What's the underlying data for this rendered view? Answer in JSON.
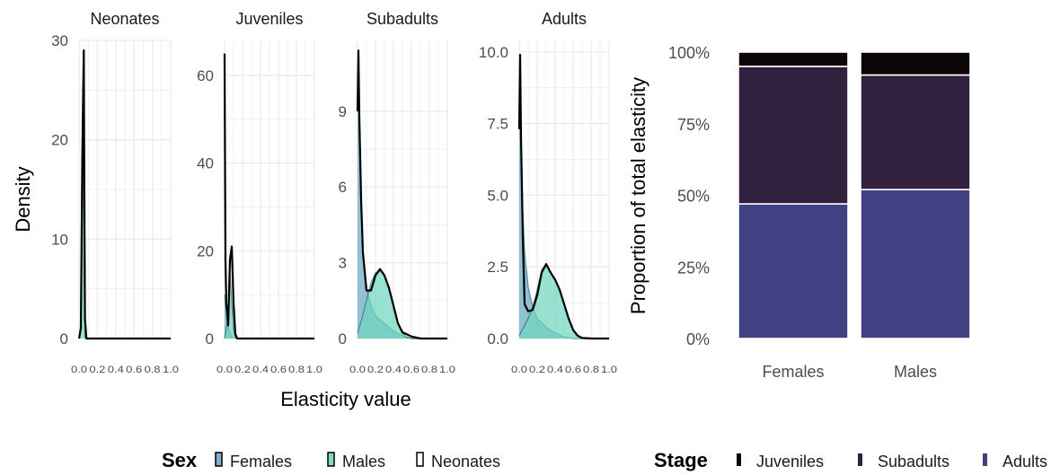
{
  "chart_data": [
    {
      "type": "area",
      "xlabel": "Elasticity value",
      "ylabel": "Density",
      "x_ticks": [
        "0.0",
        "0.2",
        "0.4",
        "0.6",
        "0.8",
        "1.0"
      ],
      "panels": [
        {
          "title": "Neonates",
          "xlim": [
            0,
            1
          ],
          "ylim": [
            0,
            30
          ],
          "y_ticks": [
            "0",
            "10",
            "20",
            "30"
          ],
          "series": [
            {
              "name": "Males",
              "x": [
                0.0,
                0.02,
                0.035,
                0.045,
                0.05,
                0.055,
                0.065
              ],
              "y": [
                0,
                1.5,
                10,
                18,
                28,
                10,
                0
              ]
            },
            {
              "name": "Neonates",
              "x": [
                0.0,
                0.02,
                0.035,
                0.045,
                0.052,
                0.058,
                0.065,
                0.08,
                1.0
              ],
              "y": [
                0,
                1,
                18,
                25,
                29,
                15,
                2,
                0,
                0
              ]
            }
          ]
        },
        {
          "title": "Juveniles",
          "xlim": [
            0,
            1
          ],
          "ylim": [
            0,
            68
          ],
          "y_ticks": [
            "0",
            "20",
            "40",
            "60"
          ],
          "series": [
            {
              "name": "Females",
              "x": [
                0.0,
                0.01,
                0.03,
                0.05,
                0.07,
                0.09
              ],
              "y": [
                10,
                8,
                4,
                2,
                1,
                0
              ]
            },
            {
              "name": "Males",
              "x": [
                0.0,
                0.04,
                0.06,
                0.08,
                0.1,
                0.12
              ],
              "y": [
                0,
                5,
                15,
                8,
                2,
                0
              ]
            },
            {
              "name": "Neonates",
              "x": [
                0.0,
                0.005,
                0.01,
                0.02,
                0.04,
                0.06,
                0.08,
                0.1,
                0.12,
                0.14,
                1.0
              ],
              "y": [
                65,
                40,
                18,
                8,
                3,
                18,
                21,
                8,
                1,
                0,
                0
              ]
            }
          ]
        },
        {
          "title": "Subadults",
          "xlim": [
            0,
            1
          ],
          "ylim": [
            0,
            11.8
          ],
          "y_ticks": [
            "0",
            "3",
            "6",
            "9"
          ],
          "series": [
            {
              "name": "Females",
              "x": [
                0.0,
                0.01,
                0.02,
                0.04,
                0.06,
                0.1,
                0.15,
                0.2,
                0.3,
                0.4,
                0.5,
                0.6,
                0.7,
                1.0
              ],
              "y": [
                9,
                11,
                8.5,
                5,
                3.5,
                2,
                1.3,
                0.9,
                0.6,
                0.3,
                0.1,
                0,
                0,
                0
              ]
            },
            {
              "name": "Males",
              "x": [
                0.0,
                0.05,
                0.1,
                0.15,
                0.2,
                0.25,
                0.3,
                0.35,
                0.4,
                0.45,
                0.5,
                0.55,
                0.6,
                0.7,
                1.0
              ],
              "y": [
                0.2,
                0.8,
                1.5,
                2.2,
                2.6,
                2.7,
                2.5,
                2.0,
                1.3,
                0.6,
                0.2,
                0.05,
                0,
                0,
                0
              ]
            },
            {
              "name": "Neonates",
              "x": [
                0.0,
                0.01,
                0.02,
                0.04,
                0.06,
                0.1,
                0.15,
                0.2,
                0.25,
                0.3,
                0.35,
                0.4,
                0.45,
                0.5,
                0.6,
                0.7,
                1.0
              ],
              "y": [
                9,
                11.4,
                8.8,
                5.5,
                3.4,
                1.9,
                1.9,
                2.5,
                2.75,
                2.5,
                2.0,
                1.3,
                0.6,
                0.25,
                0.08,
                0,
                0
              ]
            }
          ]
        },
        {
          "title": "Adults",
          "xlim": [
            0,
            1
          ],
          "ylim": [
            0,
            10.4
          ],
          "y_ticks": [
            "0.0",
            "2.5",
            "5.0",
            "7.5",
            "10.0"
          ],
          "series": [
            {
              "name": "Females",
              "x": [
                0.0,
                0.01,
                0.02,
                0.04,
                0.06,
                0.1,
                0.15,
                0.2,
                0.3,
                0.4,
                0.5,
                0.6,
                1.0
              ],
              "y": [
                7.3,
                9.9,
                7.0,
                4.5,
                3.0,
                1.8,
                1.1,
                0.7,
                0.4,
                0.2,
                0.05,
                0,
                0
              ]
            },
            {
              "name": "Males",
              "x": [
                0.0,
                0.05,
                0.1,
                0.15,
                0.2,
                0.25,
                0.3,
                0.35,
                0.4,
                0.45,
                0.5,
                0.55,
                0.6,
                0.65,
                0.7,
                0.8,
                1.0
              ],
              "y": [
                0.1,
                0.4,
                0.7,
                1.1,
                1.7,
                2.4,
                2.6,
                2.3,
                2.05,
                1.7,
                1.2,
                0.7,
                0.3,
                0.1,
                0.02,
                0,
                0
              ]
            },
            {
              "name": "Neonates",
              "x": [
                0.0,
                0.01,
                0.02,
                0.04,
                0.06,
                0.1,
                0.15,
                0.2,
                0.25,
                0.3,
                0.35,
                0.4,
                0.45,
                0.5,
                0.55,
                0.6,
                0.65,
                0.7,
                0.8,
                1.0
              ],
              "y": [
                7.3,
                9.9,
                7.0,
                3.5,
                1.2,
                0.95,
                1.0,
                1.5,
                2.3,
                2.6,
                2.3,
                2.05,
                1.7,
                1.2,
                0.7,
                0.3,
                0.1,
                0.02,
                0,
                0
              ]
            }
          ]
        }
      ],
      "legend": {
        "title": "Sex",
        "entries": [
          {
            "label": "Females",
            "color": "#7fb3c9"
          },
          {
            "label": "Males",
            "color": "#7ddbc5"
          },
          {
            "label": "Neonates",
            "color": "#ffffff"
          }
        ]
      },
      "colors": {
        "females": "#63a7c2",
        "males": "#6ed5bd",
        "overlap": "#53b7b4",
        "line": "#000000",
        "grid": "#ebebeb"
      }
    },
    {
      "type": "bar",
      "stacked": true,
      "categories": [
        "Females",
        "Males"
      ],
      "ylabel": "Proportion of total elasticity",
      "ylim": [
        0,
        1
      ],
      "y_ticks": [
        "0%",
        "25%",
        "50%",
        "75%",
        "100%"
      ],
      "series": [
        {
          "name": "Adults",
          "values": [
            0.47,
            0.52
          ],
          "color": "#414083"
        },
        {
          "name": "Subadults",
          "values": [
            0.48,
            0.4
          ],
          "color": "#31213e"
        },
        {
          "name": "Juveniles",
          "values": [
            0.05,
            0.08
          ],
          "color": "#0d0709"
        }
      ],
      "legend": {
        "title": "Stage",
        "entries": [
          {
            "label": "Juveniles",
            "color": "#0d0709"
          },
          {
            "label": "Subadults",
            "color": "#31213e"
          },
          {
            "label": "Adults",
            "color": "#414083"
          }
        ]
      }
    }
  ]
}
